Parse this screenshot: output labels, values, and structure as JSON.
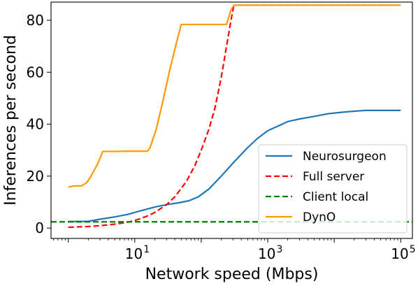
{
  "chart_data": {
    "type": "line",
    "xlabel": "Network speed (Mbps)",
    "ylabel": "Inferences per second",
    "x_scale": "log",
    "xlim": [
      0.55,
      150000
    ],
    "ylim": [
      -4,
      87
    ],
    "grid": false,
    "legend_position": "lower-right",
    "y_ticks": [
      0,
      20,
      40,
      60,
      80
    ],
    "x_ticks": [
      {
        "value": 10,
        "base": "10",
        "exp": "1"
      },
      {
        "value": 1000,
        "base": "10",
        "exp": "3"
      },
      {
        "value": 100000,
        "base": "10",
        "exp": "5"
      }
    ],
    "series": [
      {
        "name": "Neurosurgeon",
        "color": "#1f77b4",
        "style": "solid",
        "points": [
          [
            1,
            2.5
          ],
          [
            2,
            2.6
          ],
          [
            3,
            3.4
          ],
          [
            5,
            4.3
          ],
          [
            8,
            5.3
          ],
          [
            12,
            6.6
          ],
          [
            20,
            8.1
          ],
          [
            30,
            9.0
          ],
          [
            45,
            9.7
          ],
          [
            65,
            10.5
          ],
          [
            90,
            12.0
          ],
          [
            130,
            15.0
          ],
          [
            200,
            20.0
          ],
          [
            300,
            25.0
          ],
          [
            500,
            31.0
          ],
          [
            700,
            34.5
          ],
          [
            1000,
            37.5
          ],
          [
            1500,
            39.5
          ],
          [
            2000,
            41.0
          ],
          [
            3000,
            42.0
          ],
          [
            5000,
            43.0
          ],
          [
            8000,
            44.0
          ],
          [
            12000,
            44.5
          ],
          [
            20000,
            45.0
          ],
          [
            30000,
            45.3
          ],
          [
            50000,
            45.3
          ],
          [
            100000,
            45.3
          ]
        ]
      },
      {
        "name": "Full server",
        "color": "#ff0000",
        "style": "dashed",
        "points": [
          [
            1,
            0.3
          ],
          [
            2,
            0.6
          ],
          [
            3,
            0.9
          ],
          [
            5,
            1.5
          ],
          [
            8,
            2.3
          ],
          [
            10,
            2.9
          ],
          [
            15,
            4.5
          ],
          [
            20,
            6.0
          ],
          [
            30,
            9.0
          ],
          [
            40,
            12.0
          ],
          [
            60,
            18.0
          ],
          [
            80,
            24.0
          ],
          [
            100,
            30.0
          ],
          [
            130,
            38.0
          ],
          [
            160,
            46.0
          ],
          [
            200,
            58.0
          ],
          [
            240,
            70.0
          ],
          [
            280,
            80.0
          ],
          [
            310,
            85.8
          ],
          [
            100000,
            85.8
          ]
        ]
      },
      {
        "name": "Client local",
        "color": "#008000",
        "style": "dashed",
        "points": [
          [
            0.55,
            2.4
          ],
          [
            150000,
            2.4
          ]
        ]
      },
      {
        "name": "DynO",
        "color": "#ff9900",
        "style": "solid",
        "points": [
          [
            1,
            15.8
          ],
          [
            1.2,
            16.2
          ],
          [
            1.6,
            16.3
          ],
          [
            1.9,
            17.5
          ],
          [
            2.2,
            20.0
          ],
          [
            2.8,
            25.0
          ],
          [
            3.3,
            29.5
          ],
          [
            5,
            29.5
          ],
          [
            7,
            29.6
          ],
          [
            10,
            29.6
          ],
          [
            14,
            29.6
          ],
          [
            15.5,
            29.6
          ],
          [
            17,
            31.0
          ],
          [
            21,
            38.0
          ],
          [
            26,
            48.0
          ],
          [
            33,
            60.0
          ],
          [
            42,
            71.0
          ],
          [
            50,
            78.4
          ],
          [
            100,
            78.4
          ],
          [
            200,
            78.4
          ],
          [
            240,
            78.4
          ],
          [
            280,
            84.0
          ],
          [
            310,
            85.8
          ],
          [
            100000,
            85.8
          ]
        ]
      }
    ]
  }
}
